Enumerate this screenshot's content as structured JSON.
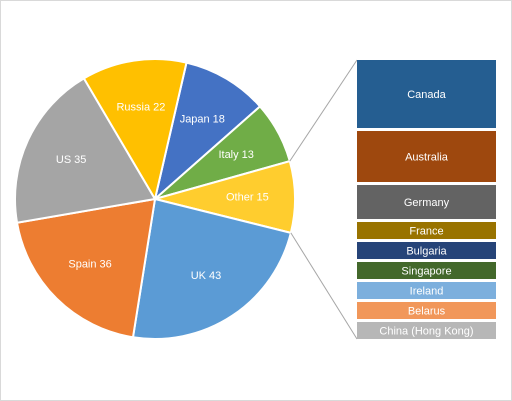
{
  "chart_data": {
    "type": "pie",
    "categories": [
      "Japan",
      "Italy",
      "Other",
      "UK",
      "Spain",
      "US",
      "Russia"
    ],
    "values": [
      18,
      13,
      15,
      43,
      36,
      35,
      22
    ],
    "colors": [
      "#4472c4",
      "#70ad47",
      "#ffcd2e",
      "#5b9bd5",
      "#ed7d31",
      "#a5a5a5",
      "#ffc000"
    ],
    "breakdown": {
      "type": "bar",
      "categories": [
        "Canada",
        "Australia",
        "Germany",
        "France",
        "Bulgaria",
        "Singapore",
        "Ireland",
        "Belarus",
        "China (Hong Kong)"
      ],
      "values": [
        4,
        3,
        2,
        1,
        1,
        1,
        1,
        1,
        1
      ],
      "colors": [
        "#255e91",
        "#9e480e",
        "#636363",
        "#997300",
        "#264478",
        "#43682b",
        "#7cafdd",
        "#f1975a",
        "#b7b7b7"
      ]
    }
  }
}
